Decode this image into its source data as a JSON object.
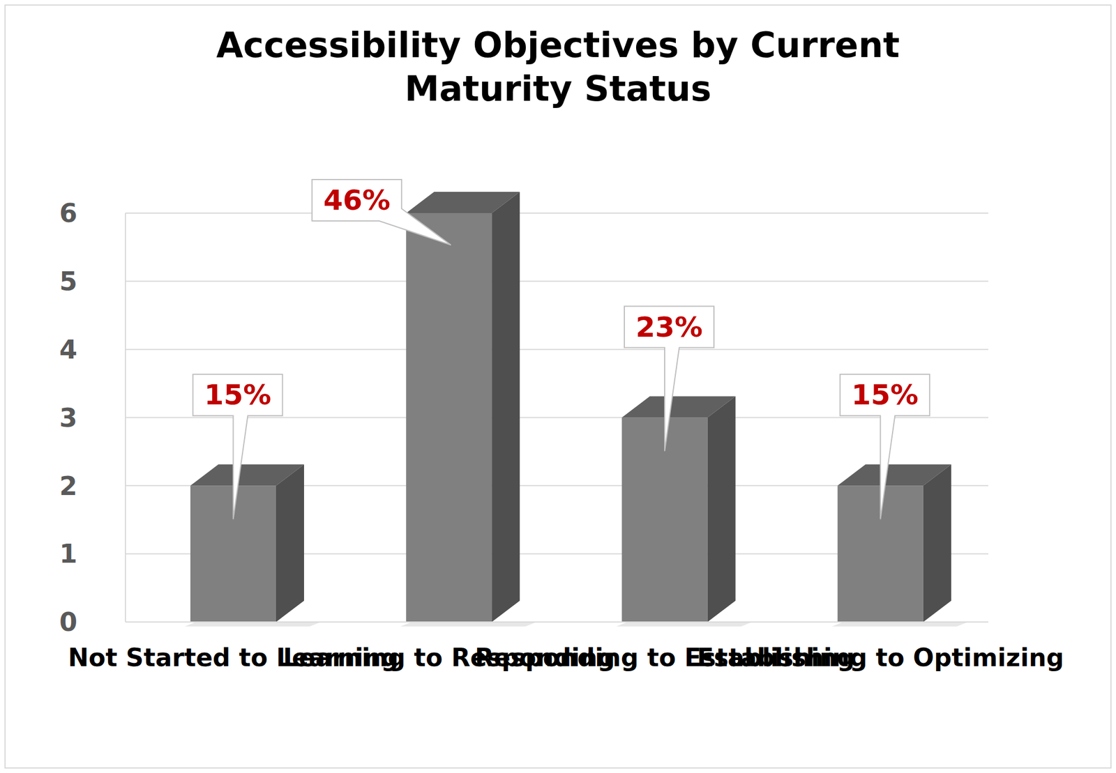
{
  "chart_data": {
    "type": "bar",
    "title": "Accessibility Objectives by Current Maturity Status",
    "categories": [
      "Not Started to Learning",
      "Learning to Responding",
      "Responding to Establishing",
      "Establishing to Optimizing"
    ],
    "values": [
      2,
      6,
      3,
      2
    ],
    "annotations": [
      "15%",
      "46%",
      "23%",
      "15%"
    ],
    "color": "#808080",
    "ylim": [
      0,
      6
    ],
    "yticks": [
      0,
      1,
      2,
      3,
      4,
      5,
      6
    ],
    "grid": true
  }
}
